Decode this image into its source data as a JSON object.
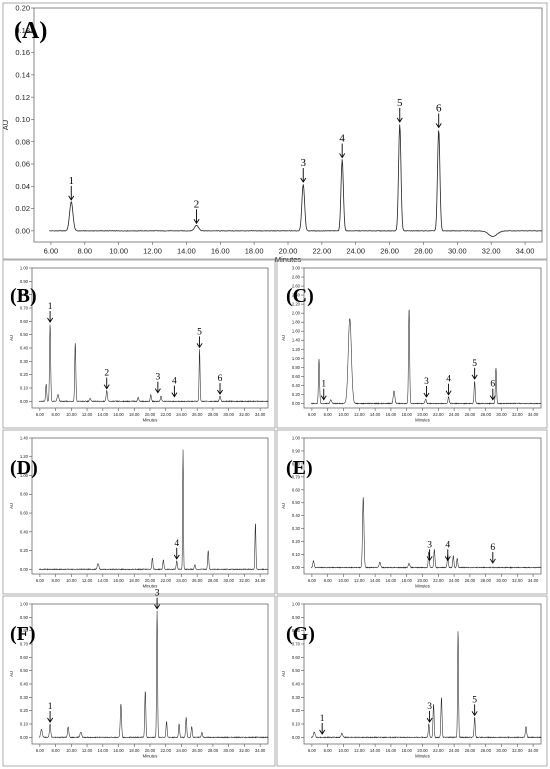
{
  "chart_data": [
    {
      "id": "A",
      "type": "line",
      "panel_label": "(A)",
      "xlabel": "Minutes",
      "ylabel": "AU",
      "xlim": [
        5.0,
        35.0
      ],
      "ylim": [
        -0.01,
        0.2
      ],
      "xticks": [
        "6.00",
        "8.00",
        "10.00",
        "12.00",
        "14.00",
        "16.00",
        "18.00",
        "20.00",
        "22.00",
        "24.00",
        "26.00",
        "28.00",
        "30.00",
        "32.00",
        "34.00"
      ],
      "yticks": [
        "0.00",
        "0.02",
        "0.04",
        "0.06",
        "0.08",
        "0.10",
        "0.12",
        "0.14",
        "0.16",
        "0.18",
        "0.20"
      ],
      "baseline": 0.0,
      "peaks": [
        {
          "x": 7.2,
          "y": 0.026,
          "w": 0.1
        },
        {
          "x": 14.6,
          "y": 0.005,
          "w": 0.12
        },
        {
          "x": 20.9,
          "y": 0.042,
          "w": 0.08
        },
        {
          "x": 23.2,
          "y": 0.064,
          "w": 0.07
        },
        {
          "x": 26.6,
          "y": 0.096,
          "w": 0.07
        },
        {
          "x": 28.9,
          "y": 0.091,
          "w": 0.07
        },
        {
          "x": 32.1,
          "y": -0.005,
          "w": 0.25
        }
      ],
      "labels": [
        {
          "text": "1",
          "x": 7.2,
          "y": 0.026
        },
        {
          "text": "2",
          "x": 14.6,
          "y": 0.005
        },
        {
          "text": "3",
          "x": 20.9,
          "y": 0.042
        },
        {
          "text": "4",
          "x": 23.2,
          "y": 0.064
        },
        {
          "text": "5",
          "x": 26.6,
          "y": 0.096
        },
        {
          "text": "6",
          "x": 28.9,
          "y": 0.091
        }
      ]
    },
    {
      "id": "B",
      "type": "line",
      "panel_label": "(B)",
      "xlabel": "Minutes",
      "ylabel": "AU",
      "xlim": [
        5.0,
        35.0
      ],
      "ylim": [
        -0.05,
        1.0
      ],
      "xticks": [
        "6.00",
        "8.00",
        "10.00",
        "12.00",
        "14.00",
        "16.00",
        "18.00",
        "20.00",
        "22.00",
        "24.00",
        "26.00",
        "28.00",
        "30.00",
        "32.00",
        "34.00"
      ],
      "yticks": [
        "0.00",
        "0.10",
        "0.20",
        "0.30",
        "0.40",
        "0.50",
        "0.60",
        "0.70",
        "0.80",
        "0.90",
        "1.00"
      ],
      "baseline": 0.0,
      "peaks": [
        {
          "x": 6.8,
          "y": 0.13,
          "w": 0.07
        },
        {
          "x": 7.3,
          "y": 0.58,
          "w": 0.07
        },
        {
          "x": 8.3,
          "y": 0.05,
          "w": 0.1
        },
        {
          "x": 10.5,
          "y": 0.44,
          "w": 0.07
        },
        {
          "x": 12.4,
          "y": 0.02,
          "w": 0.1
        },
        {
          "x": 14.5,
          "y": 0.08,
          "w": 0.08
        },
        {
          "x": 18.5,
          "y": 0.03,
          "w": 0.08
        },
        {
          "x": 20.1,
          "y": 0.05,
          "w": 0.07
        },
        {
          "x": 21.4,
          "y": 0.04,
          "w": 0.07
        },
        {
          "x": 26.3,
          "y": 0.39,
          "w": 0.06
        },
        {
          "x": 28.9,
          "y": 0.04,
          "w": 0.08
        }
      ],
      "labels": [
        {
          "text": "1",
          "x": 7.3,
          "y": 0.58
        },
        {
          "text": "2",
          "x": 14.5,
          "y": 0.08
        },
        {
          "text": "3",
          "x": 21.0,
          "y": 0.05
        },
        {
          "text": "4",
          "x": 23.1,
          "y": 0.02
        },
        {
          "text": "5",
          "x": 26.3,
          "y": 0.39
        },
        {
          "text": "6",
          "x": 28.9,
          "y": 0.04
        }
      ]
    },
    {
      "id": "C",
      "type": "line",
      "panel_label": "(C)",
      "xlabel": "Minutes",
      "ylabel": "AU",
      "xlim": [
        5.0,
        35.0
      ],
      "ylim": [
        -0.1,
        3.0
      ],
      "xticks": [
        "6.00",
        "8.00",
        "10.00",
        "12.00",
        "14.00",
        "16.00",
        "18.00",
        "20.00",
        "22.00",
        "24.00",
        "26.00",
        "28.00",
        "30.00",
        "32.00",
        "34.00"
      ],
      "yticks": [
        "0.00",
        "0.20",
        "0.40",
        "0.60",
        "0.80",
        "1.00",
        "1.20",
        "1.40",
        "1.60",
        "1.80",
        "2.00",
        "2.20",
        "2.40",
        "2.60",
        "2.80",
        "3.00"
      ],
      "baseline": 0.0,
      "peaks": [
        {
          "x": 6.9,
          "y": 0.98,
          "w": 0.07
        },
        {
          "x": 8.4,
          "y": 0.08,
          "w": 0.1
        },
        {
          "x": 10.8,
          "y": 1.88,
          "w": 0.2
        },
        {
          "x": 16.4,
          "y": 0.28,
          "w": 0.1
        },
        {
          "x": 18.3,
          "y": 2.12,
          "w": 0.07
        },
        {
          "x": 20.4,
          "y": 0.1,
          "w": 0.08
        },
        {
          "x": 23.3,
          "y": 0.15,
          "w": 0.07
        },
        {
          "x": 26.6,
          "y": 0.5,
          "w": 0.07
        },
        {
          "x": 29.3,
          "y": 0.8,
          "w": 0.07
        }
      ],
      "labels": [
        {
          "text": "1",
          "x": 7.5,
          "y": 0.04
        },
        {
          "text": "3",
          "x": 20.5,
          "y": 0.1
        },
        {
          "text": "4",
          "x": 23.3,
          "y": 0.15
        },
        {
          "text": "5",
          "x": 26.6,
          "y": 0.5
        },
        {
          "text": "6",
          "x": 28.9,
          "y": 0.04
        }
      ]
    },
    {
      "id": "D",
      "type": "line",
      "panel_label": "(D)",
      "xlabel": "Minutes",
      "ylabel": "AU",
      "xlim": [
        5.0,
        35.0
      ],
      "ylim": [
        -0.05,
        1.4
      ],
      "xticks": [
        "6.00",
        "8.00",
        "10.00",
        "12.00",
        "14.00",
        "16.00",
        "18.00",
        "20.00",
        "22.00",
        "24.00",
        "26.00",
        "28.00",
        "30.00",
        "32.00",
        "34.00"
      ],
      "yticks": [
        "0.00",
        "0.20",
        "0.40",
        "0.60",
        "0.80",
        "1.00",
        "1.20",
        "1.40"
      ],
      "baseline": 0.0,
      "peaks": [
        {
          "x": 13.4,
          "y": 0.06,
          "w": 0.1
        },
        {
          "x": 20.3,
          "y": 0.12,
          "w": 0.07
        },
        {
          "x": 21.7,
          "y": 0.1,
          "w": 0.07
        },
        {
          "x": 23.4,
          "y": 0.09,
          "w": 0.07
        },
        {
          "x": 24.2,
          "y": 1.28,
          "w": 0.05
        },
        {
          "x": 25.7,
          "y": 0.05,
          "w": 0.07
        },
        {
          "x": 27.4,
          "y": 0.2,
          "w": 0.07
        },
        {
          "x": 33.4,
          "y": 0.5,
          "w": 0.06
        }
      ],
      "labels": [
        {
          "text": "4",
          "x": 23.4,
          "y": 0.09
        }
      ]
    },
    {
      "id": "E",
      "type": "line",
      "panel_label": "(E)",
      "xlabel": "Minutes",
      "ylabel": "AU",
      "xlim": [
        5.0,
        35.0
      ],
      "ylim": [
        -0.05,
        1.0
      ],
      "xticks": [
        "6.00",
        "8.00",
        "10.00",
        "12.00",
        "14.00",
        "16.00",
        "18.00",
        "20.00",
        "22.00",
        "24.00",
        "26.00",
        "28.00",
        "30.00",
        "32.00",
        "34.00"
      ],
      "yticks": [
        "0.00",
        "0.10",
        "0.20",
        "0.30",
        "0.40",
        "0.50",
        "0.60",
        "0.70",
        "0.80",
        "0.90",
        "1.00"
      ],
      "baseline": 0.0,
      "peaks": [
        {
          "x": 6.2,
          "y": 0.05,
          "w": 0.08
        },
        {
          "x": 12.5,
          "y": 0.54,
          "w": 0.09
        },
        {
          "x": 14.6,
          "y": 0.04,
          "w": 0.1
        },
        {
          "x": 18.3,
          "y": 0.03,
          "w": 0.1
        },
        {
          "x": 20.8,
          "y": 0.12,
          "w": 0.07
        },
        {
          "x": 21.5,
          "y": 0.14,
          "w": 0.07
        },
        {
          "x": 23.2,
          "y": 0.1,
          "w": 0.07
        },
        {
          "x": 23.9,
          "y": 0.09,
          "w": 0.07
        },
        {
          "x": 24.4,
          "y": 0.07,
          "w": 0.07
        }
      ],
      "labels": [
        {
          "text": "3",
          "x": 20.9,
          "y": 0.04
        },
        {
          "text": "4",
          "x": 23.2,
          "y": 0.04
        },
        {
          "text": "6",
          "x": 28.9,
          "y": 0.02
        }
      ]
    },
    {
      "id": "F",
      "type": "line",
      "panel_label": "(F)",
      "xlabel": "Minutes",
      "ylabel": "AU",
      "xlim": [
        5.0,
        35.0
      ],
      "ylim": [
        -0.05,
        1.0
      ],
      "xticks": [
        "6.00",
        "8.00",
        "10.00",
        "12.00",
        "14.00",
        "16.00",
        "18.00",
        "20.00",
        "22.00",
        "24.00",
        "26.00",
        "28.00",
        "30.00",
        "32.00",
        "34.00"
      ],
      "yticks": [
        "0.00",
        "0.10",
        "0.20",
        "0.30",
        "0.40",
        "0.50",
        "0.60",
        "0.70",
        "0.80",
        "0.90",
        "1.00"
      ],
      "baseline": 0.0,
      "peaks": [
        {
          "x": 6.2,
          "y": 0.06,
          "w": 0.1
        },
        {
          "x": 7.3,
          "y": 0.1,
          "w": 0.08
        },
        {
          "x": 9.6,
          "y": 0.08,
          "w": 0.08
        },
        {
          "x": 11.2,
          "y": 0.04,
          "w": 0.1
        },
        {
          "x": 16.3,
          "y": 0.25,
          "w": 0.08
        },
        {
          "x": 19.4,
          "y": 0.35,
          "w": 0.07
        },
        {
          "x": 20.9,
          "y": 0.95,
          "w": 0.06
        },
        {
          "x": 22.1,
          "y": 0.12,
          "w": 0.07
        },
        {
          "x": 23.7,
          "y": 0.1,
          "w": 0.07
        },
        {
          "x": 24.6,
          "y": 0.15,
          "w": 0.07
        },
        {
          "x": 25.3,
          "y": 0.08,
          "w": 0.07
        },
        {
          "x": 26.6,
          "y": 0.04,
          "w": 0.07
        }
      ],
      "labels": [
        {
          "text": "1",
          "x": 7.3,
          "y": 0.1
        },
        {
          "text": "3",
          "x": 20.9,
          "y": 0.95
        }
      ]
    },
    {
      "id": "G",
      "type": "line",
      "panel_label": "(G)",
      "xlabel": "Minutes",
      "ylabel": "AU",
      "xlim": [
        5.0,
        35.0
      ],
      "ylim": [
        -0.05,
        1.0
      ],
      "xticks": [
        "6.00",
        "8.00",
        "10.00",
        "12.00",
        "14.00",
        "16.00",
        "18.00",
        "20.00",
        "22.00",
        "24.00",
        "26.00",
        "28.00",
        "30.00",
        "32.00",
        "34.00"
      ],
      "yticks": [
        "0.00",
        "0.10",
        "0.20",
        "0.30",
        "0.40",
        "0.50",
        "0.60",
        "0.70",
        "0.80",
        "0.90",
        "1.00"
      ],
      "baseline": 0.0,
      "peaks": [
        {
          "x": 6.3,
          "y": 0.04,
          "w": 0.1
        },
        {
          "x": 9.8,
          "y": 0.03,
          "w": 0.1
        },
        {
          "x": 20.8,
          "y": 0.1,
          "w": 0.07
        },
        {
          "x": 21.4,
          "y": 0.25,
          "w": 0.07
        },
        {
          "x": 22.4,
          "y": 0.3,
          "w": 0.07
        },
        {
          "x": 24.5,
          "y": 0.8,
          "w": 0.06
        },
        {
          "x": 26.6,
          "y": 0.15,
          "w": 0.07
        },
        {
          "x": 33.1,
          "y": 0.08,
          "w": 0.08
        }
      ],
      "labels": [
        {
          "text": "1",
          "x": 7.3,
          "y": 0.01
        },
        {
          "text": "3",
          "x": 20.9,
          "y": 0.1
        },
        {
          "text": "5",
          "x": 26.6,
          "y": 0.15
        }
      ]
    }
  ]
}
